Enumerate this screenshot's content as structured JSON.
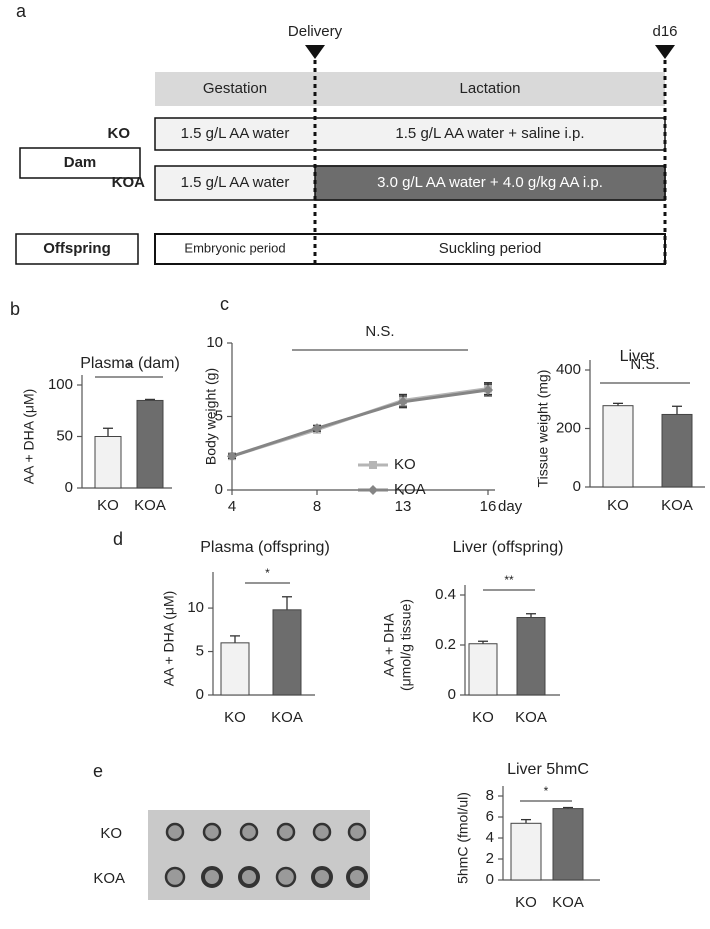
{
  "panels": [
    "a",
    "b",
    "c",
    "d",
    "e"
  ],
  "diagram": {
    "delivery": "Delivery",
    "end": "d16",
    "gestation": "Gestation",
    "lactation": "Lactation",
    "dam": "Dam",
    "offspring": "Offspring",
    "ko": {
      "label": "KO",
      "gestation": "1.5 g/L AA water",
      "lactation": "1.5 g/L AA water + saline i.p."
    },
    "koa": {
      "label": "KOA",
      "gestation": "1.5 g/L AA water",
      "lactation": "3.0 g/L AA water + 4.0 g/kg AA i.p."
    },
    "embryonic": "Embryonic period",
    "suckling": "Suckling period"
  },
  "blot": {
    "rows": [
      "KO",
      "KOA"
    ]
  },
  "chart_data": [
    {
      "type": "bar",
      "title": "Plasma (dam)",
      "ylabel": "AA + DHA (μM)",
      "categories": [
        "KO",
        "KOA"
      ],
      "values": [
        50,
        85
      ],
      "errors": [
        8,
        1
      ],
      "colors": [
        "#f2f2f2",
        "#6d6d6d"
      ],
      "ylim": [
        0,
        100
      ],
      "yticks": [
        0,
        50,
        100
      ],
      "annotation": "*"
    },
    {
      "type": "line",
      "ylabel": "Body weight (g)",
      "xlabel": "day",
      "categories": [
        "4",
        "8",
        "13",
        "16"
      ],
      "series": [
        {
          "name": "KO",
          "color": "#b5b5b5",
          "values": [
            2.3,
            4.1,
            6.1,
            6.9
          ],
          "errors": [
            0.15,
            0.2,
            0.4,
            0.4
          ]
        },
        {
          "name": "KOA",
          "color": "#858585",
          "values": [
            2.3,
            4.2,
            6.0,
            6.8
          ],
          "errors": [
            0.15,
            0.2,
            0.4,
            0.4
          ]
        }
      ],
      "ylim": [
        0,
        10
      ],
      "yticks": [
        0,
        5,
        10
      ],
      "annotation": "N.S."
    },
    {
      "type": "bar",
      "title": "Liver",
      "ylabel": "Tissue weight (mg)",
      "categories": [
        "KO",
        "KOA"
      ],
      "values": [
        278,
        248
      ],
      "errors": [
        8,
        28
      ],
      "colors": [
        "#f2f2f2",
        "#6d6d6d"
      ],
      "ylim": [
        0,
        400
      ],
      "yticks": [
        0,
        200,
        400
      ],
      "annotation": "N.S."
    },
    {
      "type": "bar",
      "title": "Plasma (offspring)",
      "ylabel": "AA + DHA (μM)",
      "categories": [
        "KO",
        "KOA"
      ],
      "values": [
        6.0,
        9.8
      ],
      "errors": [
        0.8,
        1.5
      ],
      "colors": [
        "#f2f2f2",
        "#6d6d6d"
      ],
      "ylim": [
        0,
        13
      ],
      "yticks": [
        0,
        5,
        10
      ],
      "annotation": "*"
    },
    {
      "type": "bar",
      "title": "Liver (offspring)",
      "ylabel": [
        "AA + DHA",
        "(μmol/g tissue)"
      ],
      "categories": [
        "KO",
        "KOA"
      ],
      "values": [
        0.205,
        0.31
      ],
      "errors": [
        0.01,
        0.015
      ],
      "colors": [
        "#f2f2f2",
        "#6d6d6d"
      ],
      "ylim": [
        0,
        0.4
      ],
      "yticks": [
        0,
        0.2,
        0.4
      ],
      "annotation": "**"
    },
    {
      "type": "bar",
      "title": "Liver 5hmC",
      "ylabel": "5hmC (fmol/ul)",
      "categories": [
        "KO",
        "KOA"
      ],
      "values": [
        5.4,
        6.8
      ],
      "errors": [
        0.35,
        0.1
      ],
      "colors": [
        "#f2f2f2",
        "#6d6d6d"
      ],
      "ylim": [
        0,
        8
      ],
      "yticks": [
        0,
        2,
        4,
        6,
        8
      ],
      "annotation": "*"
    }
  ]
}
